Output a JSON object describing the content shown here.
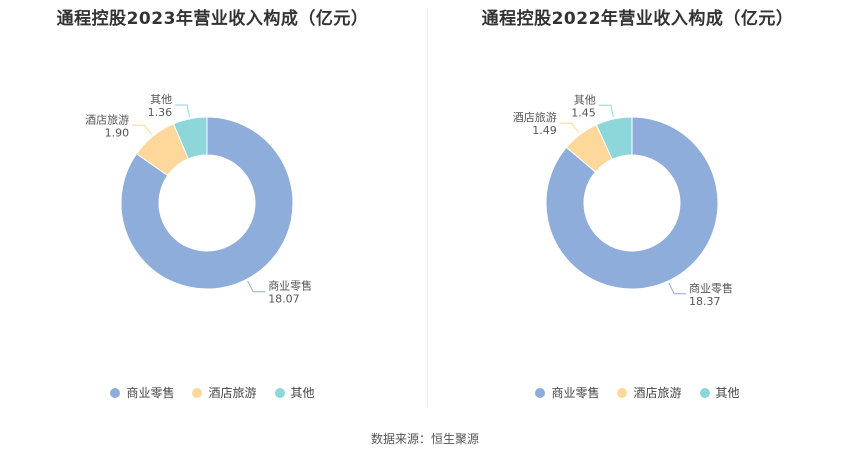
{
  "colors": [
    "#8faddb",
    "#fdd89a",
    "#8dd6d9"
  ],
  "chart_data": [
    {
      "type": "pie",
      "title": "通程控股2023年营业收入构成（亿元）",
      "categories": [
        "商业零售",
        "酒店旅游",
        "其他"
      ],
      "values": [
        18.07,
        1.9,
        1.36
      ],
      "value_labels": [
        "18.07",
        "1.90",
        "1.36"
      ],
      "legend": "bottom"
    },
    {
      "type": "pie",
      "title": "通程控股2022年营业收入构成（亿元）",
      "categories": [
        "商业零售",
        "酒店旅游",
        "其他"
      ],
      "values": [
        18.37,
        1.49,
        1.45
      ],
      "value_labels": [
        "18.37",
        "1.49",
        "1.45"
      ],
      "legend": "bottom"
    }
  ],
  "source": "数据来源：恒生聚源"
}
